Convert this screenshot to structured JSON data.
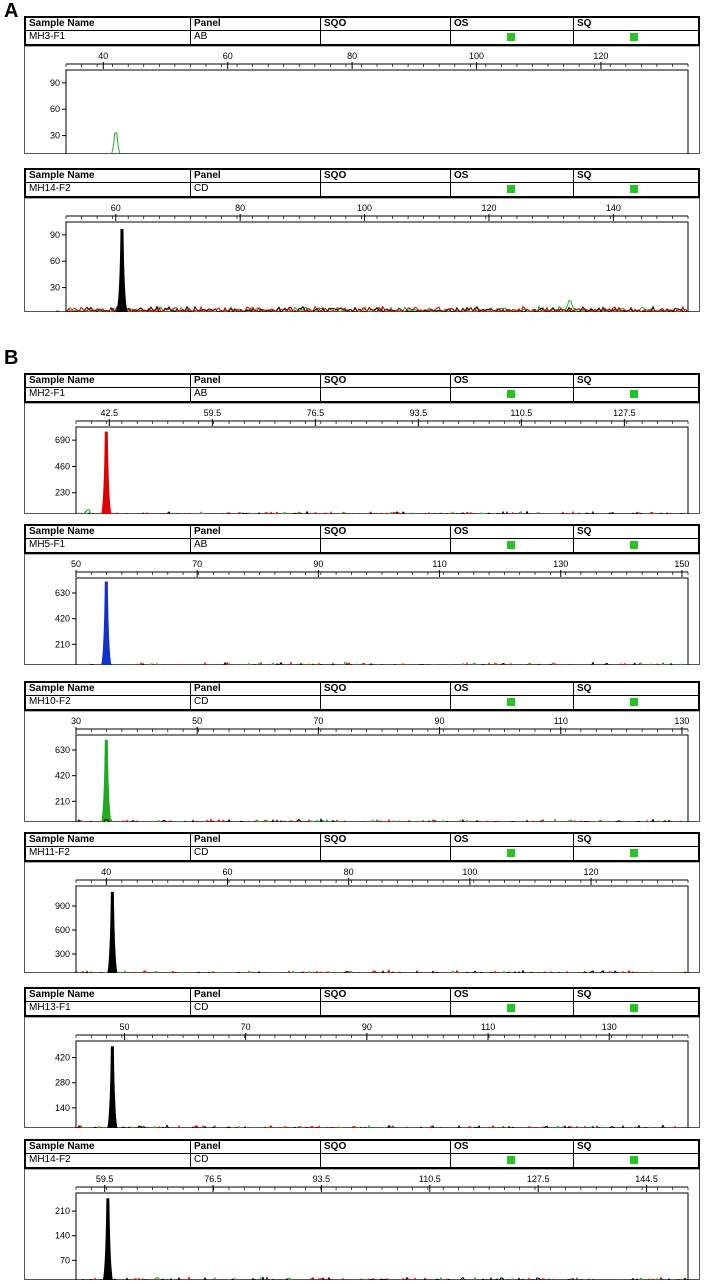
{
  "sections": [
    {
      "label": "A",
      "panels": [
        0,
        1
      ]
    },
    {
      "label": "B",
      "panels": [
        2,
        3,
        4,
        5,
        6,
        7
      ]
    }
  ],
  "header_labels": {
    "sample_name": "Sample Name",
    "panel": "Panel",
    "sqo": "SQO",
    "os": "OS",
    "sq": "SQ"
  },
  "colors": {
    "flag": "#22c522",
    "black": "#000000",
    "red": "#e00000",
    "green": "#1faa1f",
    "blue": "#1030d0"
  },
  "chart_data": [
    {
      "type": "line",
      "sample": "MH3-F1",
      "panel": "AB",
      "x_ticks": [
        "40",
        "60",
        "80",
        "100",
        "120"
      ],
      "x_range": [
        34,
        134
      ],
      "y_ticks": [
        "0",
        "30",
        "60",
        "90"
      ],
      "ylim": [
        0,
        100
      ],
      "peaks": [
        {
          "x": 42,
          "y": 33,
          "color": "green"
        }
      ],
      "noise": 8
    },
    {
      "type": "line",
      "sample": "MH14-F2",
      "panel": "CD",
      "x_ticks": [
        "60",
        "80",
        "100",
        "120",
        "140"
      ],
      "x_range": [
        52,
        152
      ],
      "y_ticks": [
        "0",
        "30",
        "60",
        "90"
      ],
      "ylim": [
        0,
        100
      ],
      "peaks": [
        {
          "x": 61,
          "y": 96,
          "color": "black"
        },
        {
          "x": 133,
          "y": 15,
          "color": "green"
        }
      ],
      "noise": 8
    },
    {
      "type": "line",
      "sample": "MH2-F1",
      "panel": "AB",
      "x_ticks": [
        "42.5",
        "59.5",
        "76.5",
        "93.5",
        "110.5",
        "127.5"
      ],
      "x_range": [
        37,
        138
      ],
      "y_ticks": [
        "0",
        "230",
        "460",
        "690"
      ],
      "ylim": [
        0,
        770
      ],
      "peaks": [
        {
          "x": 42,
          "y": 760,
          "color": "red"
        },
        {
          "x": 39,
          "y": 80,
          "color": "green"
        },
        {
          "x": 107,
          "y": 30,
          "color": "blue"
        },
        {
          "x": 110,
          "y": 35,
          "color": "black"
        }
      ],
      "noise": 10
    },
    {
      "type": "line",
      "sample": "MH5-F1",
      "panel": "AB",
      "x_ticks": [
        "50",
        "70",
        "90",
        "110",
        "130",
        "150"
      ],
      "x_range": [
        50,
        151
      ],
      "y_ticks": [
        "0",
        "210",
        "420",
        "630"
      ],
      "ylim": [
        0,
        720
      ],
      "peaks": [
        {
          "x": 55,
          "y": 720,
          "color": "blue"
        },
        {
          "x": 108,
          "y": 40,
          "color": "black"
        },
        {
          "x": 133,
          "y": 30,
          "color": "green"
        }
      ],
      "noise": 10
    },
    {
      "type": "line",
      "sample": "MH10-F2",
      "panel": "CD",
      "x_ticks": [
        "30",
        "50",
        "70",
        "90",
        "110",
        "130"
      ],
      "x_range": [
        30,
        131
      ],
      "y_ticks": [
        "0",
        "210",
        "420",
        "630"
      ],
      "ylim": [
        0,
        720
      ],
      "peaks": [
        {
          "x": 35,
          "y": 710,
          "color": "green"
        },
        {
          "x": 35,
          "y": 60,
          "color": "black"
        },
        {
          "x": 80,
          "y": 40,
          "color": "blue"
        }
      ],
      "noise": 10
    },
    {
      "type": "line",
      "sample": "MH11-F2",
      "panel": "CD",
      "x_ticks": [
        "40",
        "60",
        "80",
        "100",
        "120"
      ],
      "x_range": [
        35,
        136
      ],
      "y_ticks": [
        "0",
        "300",
        "600",
        "900"
      ],
      "ylim": [
        0,
        1100
      ],
      "peaks": [
        {
          "x": 41,
          "y": 1070,
          "color": "black"
        },
        {
          "x": 133,
          "y": 30,
          "color": "green"
        }
      ],
      "noise": 12
    },
    {
      "type": "line",
      "sample": "MH13-F1",
      "panel": "CD",
      "x_ticks": [
        "50",
        "70",
        "90",
        "110",
        "130"
      ],
      "x_range": [
        42,
        143
      ],
      "y_ticks": [
        "0",
        "140",
        "280",
        "420"
      ],
      "ylim": [
        0,
        490
      ],
      "peaks": [
        {
          "x": 48,
          "y": 480,
          "color": "black"
        },
        {
          "x": 103,
          "y": 25,
          "color": "blue"
        },
        {
          "x": 108,
          "y": 30,
          "color": "black"
        }
      ],
      "noise": 6
    },
    {
      "type": "line",
      "sample": "MH14-F2",
      "panel": "CD",
      "x_ticks": [
        "59.5",
        "76.5",
        "93.5",
        "110.5",
        "127.5",
        "144.5"
      ],
      "x_range": [
        55,
        151
      ],
      "y_ticks": [
        "0",
        "70",
        "140",
        "210"
      ],
      "ylim": [
        0,
        250
      ],
      "peaks": [
        {
          "x": 60,
          "y": 245,
          "color": "black"
        },
        {
          "x": 132,
          "y": 12,
          "color": "green"
        },
        {
          "x": 147,
          "y": 15,
          "color": "blue"
        }
      ],
      "noise": 5
    }
  ]
}
